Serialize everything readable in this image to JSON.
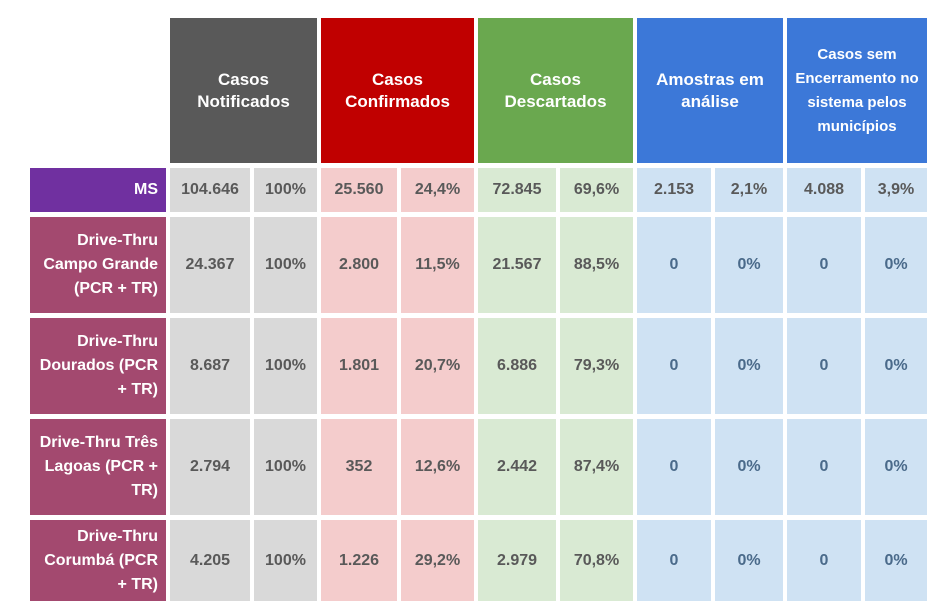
{
  "header": {
    "notificados": "Casos Notificados",
    "confirmados": "Casos Confirmados",
    "descartados": "Casos Descartados",
    "amostras": "Amostras em análise",
    "sem_encerramento": "Casos sem Encerramento no sistema pelos municípios"
  },
  "colors": {
    "notificados": "#595959",
    "confirmados": "#c00000",
    "descartados": "#6aa84f",
    "amostras": "#3c78d8",
    "sem_encerramento": "#3c78d8",
    "ms_label": "#7030a0",
    "row_label": "#a3496f"
  },
  "rows": [
    {
      "label": "MS",
      "values": [
        "104.646",
        "100%",
        "25.560",
        "24,4%",
        "72.845",
        "69,6%",
        "2.153",
        "2,1%",
        "4.088",
        "3,9%"
      ]
    },
    {
      "label": "Drive-Thru Campo Grande (PCR + TR)",
      "values": [
        "24.367",
        "100%",
        "2.800",
        "11,5%",
        "21.567",
        "88,5%",
        "0",
        "0%",
        "0",
        "0%"
      ]
    },
    {
      "label": "Drive-Thru Dourados (PCR + TR)",
      "values": [
        "8.687",
        "100%",
        "1.801",
        "20,7%",
        "6.886",
        "79,3%",
        "0",
        "0%",
        "0",
        "0%"
      ]
    },
    {
      "label": "Drive-Thru Três Lagoas (PCR + TR)",
      "values": [
        "2.794",
        "100%",
        "352",
        "12,6%",
        "2.442",
        "87,4%",
        "0",
        "0%",
        "0",
        "0%"
      ]
    },
    {
      "label": "Drive-Thru Corumbá (PCR + TR)",
      "values": [
        "4.205",
        "100%",
        "1.226",
        "29,2%",
        "2.979",
        "70,8%",
        "0",
        "0%",
        "0",
        "0%"
      ]
    }
  ]
}
